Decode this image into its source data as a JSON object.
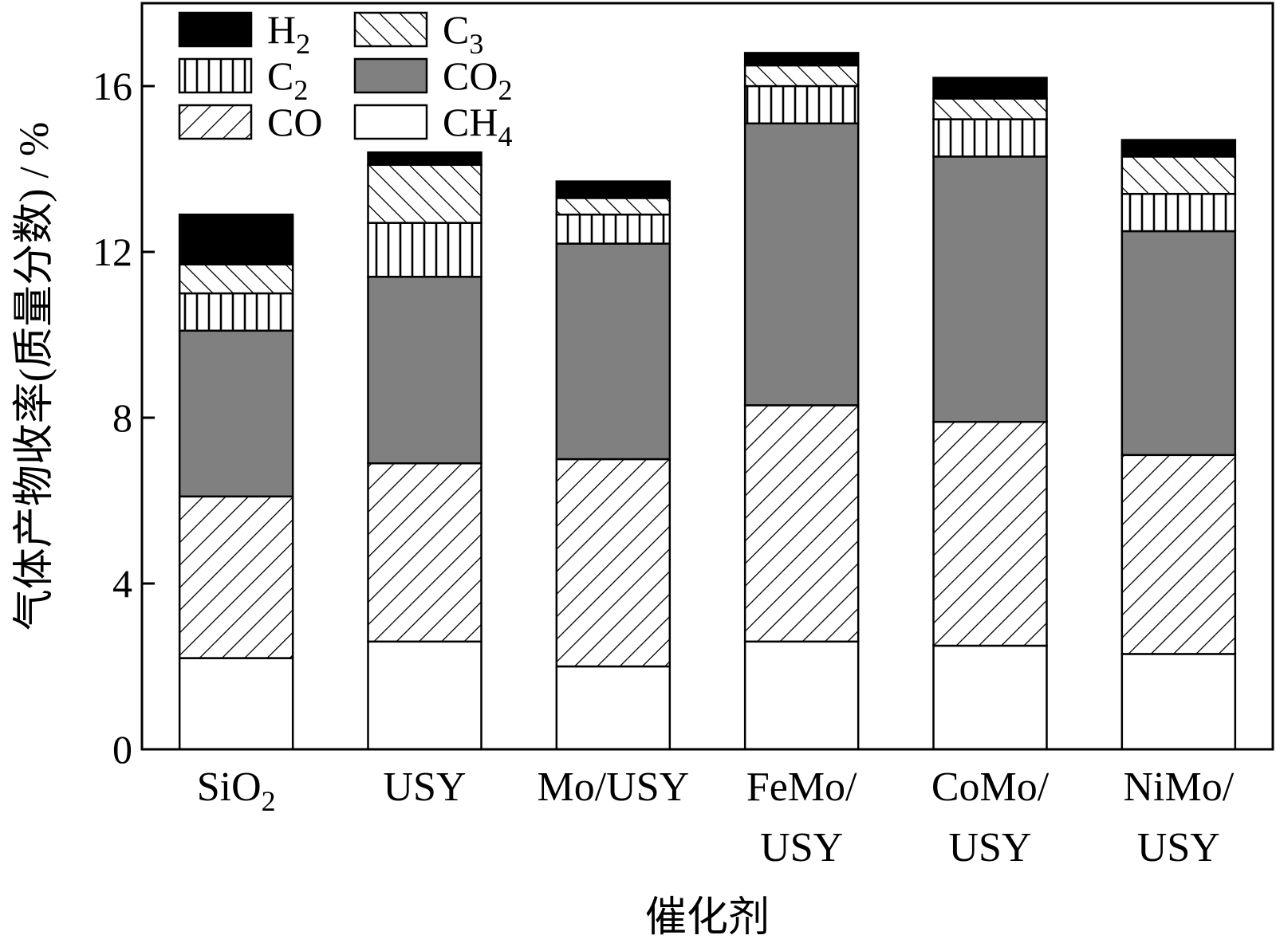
{
  "chart_data": {
    "type": "bar",
    "stacked": true,
    "categories": [
      [
        "SiO",
        "2",
        ""
      ],
      [
        "USY",
        "",
        ""
      ],
      [
        "Mo/USY",
        "",
        ""
      ],
      [
        "FeMo/",
        "",
        "USY"
      ],
      [
        "CoMo/",
        "",
        "USY"
      ],
      [
        "NiMo/",
        "",
        "USY"
      ]
    ],
    "series": [
      {
        "name": "CH4",
        "name_base": "CH",
        "name_sub": "4",
        "fill": "white",
        "values": [
          2.2,
          2.6,
          2.0,
          2.6,
          2.5,
          2.3
        ]
      },
      {
        "name": "CO",
        "name_base": "CO",
        "name_sub": "",
        "fill": "hatch-back",
        "values": [
          3.9,
          4.3,
          5.0,
          5.7,
          5.4,
          4.8
        ]
      },
      {
        "name": "CO2",
        "name_base": "CO",
        "name_sub": "2",
        "fill": "gray",
        "values": [
          4.0,
          4.5,
          5.2,
          6.8,
          6.4,
          5.4
        ]
      },
      {
        "name": "C2",
        "name_base": "C",
        "name_sub": "2",
        "fill": "vertical-lines",
        "values": [
          0.9,
          1.3,
          0.7,
          0.9,
          0.9,
          0.9
        ]
      },
      {
        "name": "C3",
        "name_base": "C",
        "name_sub": "3",
        "fill": "hatch-forward",
        "values": [
          0.7,
          1.4,
          0.4,
          0.5,
          0.5,
          0.9
        ]
      },
      {
        "name": "H2",
        "name_base": "H",
        "name_sub": "2",
        "fill": "black",
        "values": [
          1.2,
          0.3,
          0.4,
          0.3,
          0.5,
          0.4
        ]
      }
    ],
    "legend_order": [
      "H2",
      "C3",
      "C2",
      "CO2",
      "CO",
      "CH4"
    ],
    "legend_position": "top-left",
    "xlabel": "催化剂",
    "ylabel": "气体产物收率(质量分数) / %",
    "ylim": [
      0,
      18
    ],
    "yticks": [
      0,
      4,
      8,
      12,
      16
    ],
    "grid": false,
    "colors": {
      "gray": "#808080",
      "black": "#000000",
      "white": "#ffffff"
    }
  }
}
